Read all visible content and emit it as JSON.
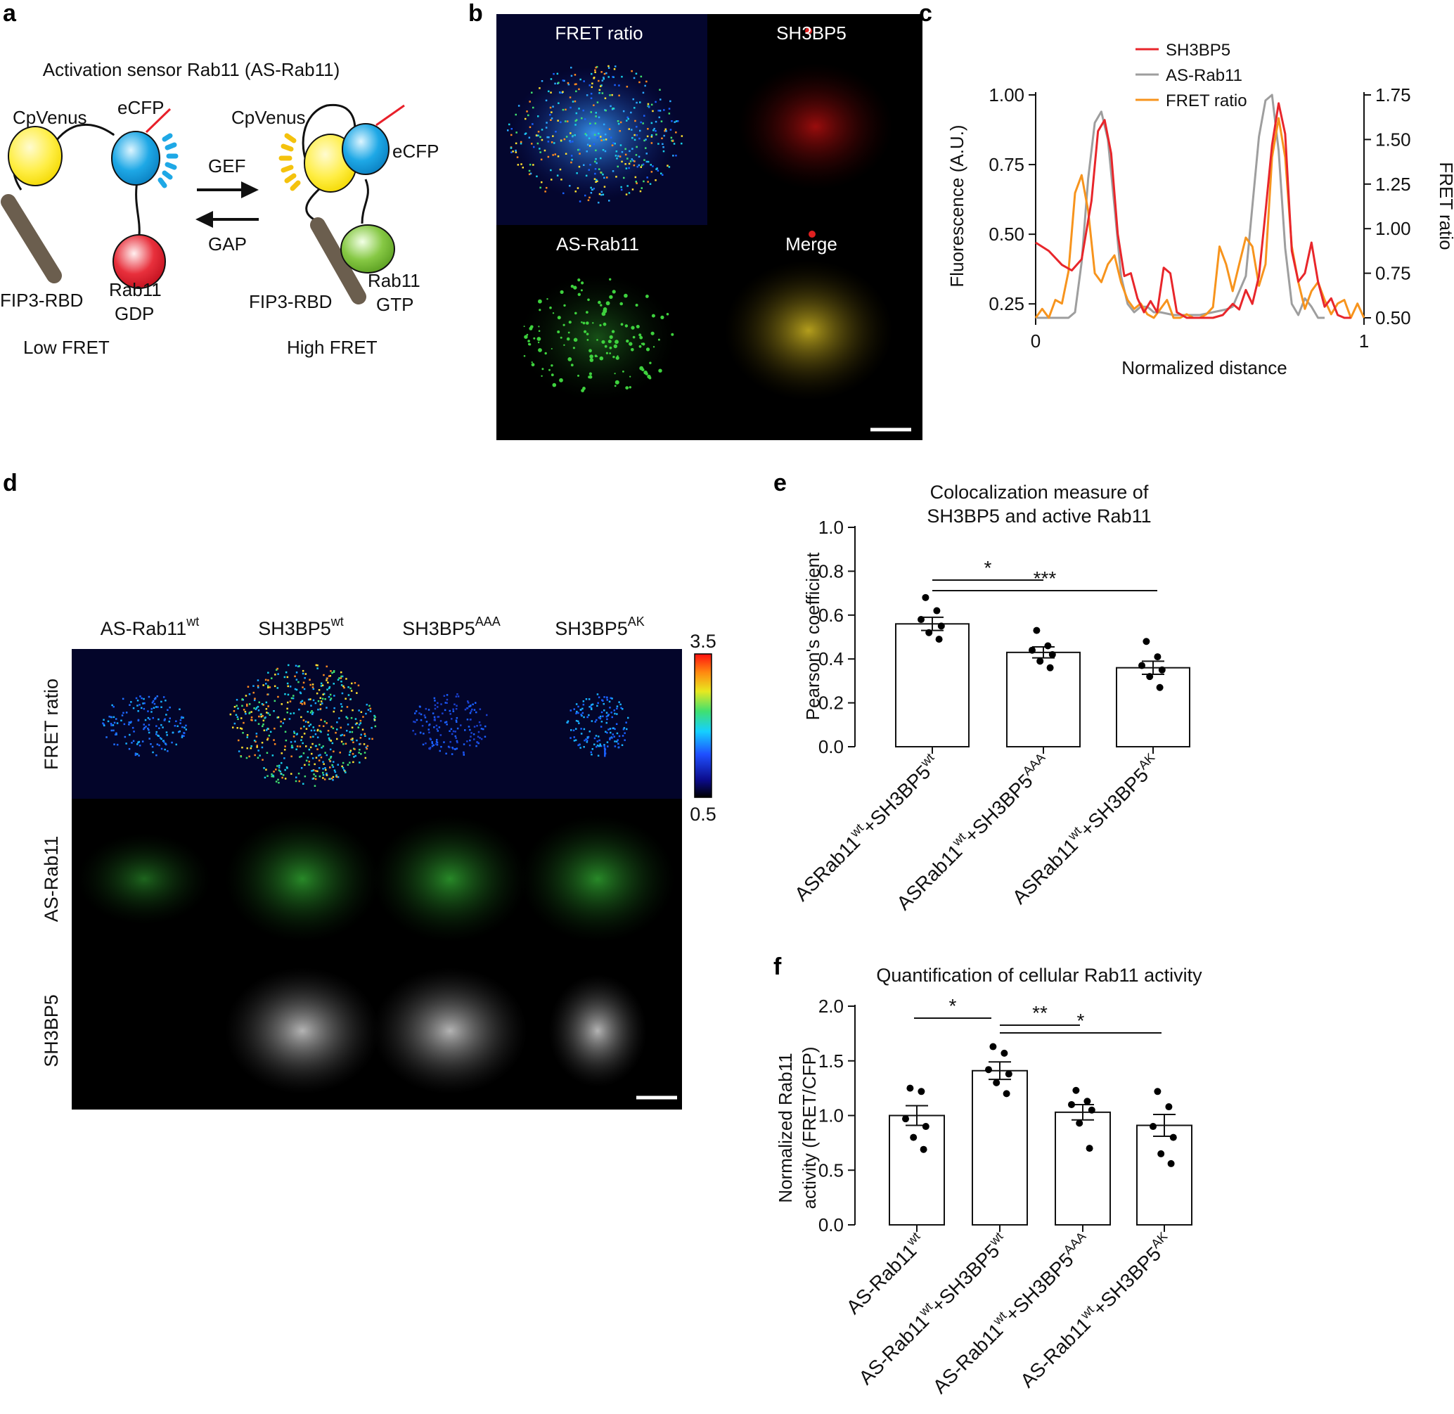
{
  "panel_labels": {
    "a": "a",
    "b": "b",
    "c": "c",
    "d": "d",
    "e": "e",
    "f": "f"
  },
  "panel_a": {
    "title": "Activation sensor Rab11 (AS-Rab11)",
    "left": {
      "cpvenus": "CpVenus",
      "ecfp": "eCFP",
      "fip3": "FIP3-RBD",
      "rab11": "Rab11",
      "gdp": "GDP",
      "state": "Low FRET"
    },
    "right": {
      "cpvenus": "CpVenus",
      "ecfp": "eCFP",
      "fip3": "FIP3-RBD",
      "rab11": "Rab11",
      "gtp": "GTP",
      "state": "High FRET"
    },
    "gef": "GEF",
    "gap": "GAP",
    "colors": {
      "venus": "#ffee44",
      "ecfp": "#1ea8e6",
      "rab_gdp": "#e8303c",
      "rab_gtp": "#86c844",
      "rod": "#6b5e4e",
      "linker_red": "#e8202a"
    }
  },
  "panel_b": {
    "labels": {
      "fret": "FRET ratio",
      "sh3bp5": "SH3BP5",
      "asrab11": "AS-Rab11",
      "merge": "Merge"
    }
  },
  "panel_c": {
    "legend": [
      "SH3BP5",
      "AS-Rab11",
      "FRET ratio"
    ],
    "ylabel_left": "Fluorescence (A.U.)",
    "ylabel_right": "FRET ratio",
    "xlabel": "Normalized distance",
    "left_ticks": [
      "1.00",
      "0.75",
      "0.50",
      "0.25"
    ],
    "right_ticks": [
      "1.75",
      "1.50",
      "1.25",
      "1.00",
      "0.75",
      "0.50"
    ],
    "x_ticks": [
      "0",
      "1"
    ]
  },
  "panel_d": {
    "columns": [
      "AS-Rab11",
      "SH3BP5",
      "SH3BP5",
      "SH3BP5"
    ],
    "column_sup": [
      "wt",
      "wt",
      "AAA",
      "AK"
    ],
    "rows": [
      "FRET ratio",
      "AS-Rab11",
      "SH3BP5"
    ],
    "scale_max": "3.5",
    "scale_min": "0.5"
  },
  "panel_e": {
    "title1": "Colocalization measure of",
    "title2": "SH3BP5 and active Rab11",
    "sig": [
      "*",
      "***"
    ],
    "y_ticks": [
      "0.0",
      "0.2",
      "0.4",
      "0.6",
      "0.8",
      "1.0"
    ]
  },
  "panel_f": {
    "title": "Quantification of cellular Rab11 activity",
    "sig": [
      "*",
      "**",
      "*"
    ],
    "y_ticks": [
      "0.0",
      "0.5",
      "1.0",
      "1.5",
      "2.0"
    ]
  },
  "chart_data": [
    {
      "type": "line",
      "title": "",
      "xlabel": "Normalized distance",
      "ylabel": "Fluorescence (A.U.)",
      "ylabel_right": "FRET ratio",
      "xlim": [
        0,
        1
      ],
      "ylim": [
        0.2,
        1.0
      ],
      "ylim_right": [
        0.5,
        1.75
      ],
      "legend": "top-left",
      "series": [
        {
          "name": "SH3BP5",
          "axis": "left",
          "color": "#e8262b",
          "x": [
            0,
            0.04,
            0.08,
            0.11,
            0.14,
            0.17,
            0.19,
            0.21,
            0.23,
            0.25,
            0.27,
            0.29,
            0.31,
            0.33,
            0.35,
            0.37,
            0.39,
            0.41,
            0.43,
            0.46,
            0.5,
            0.54,
            0.57,
            0.6,
            0.62,
            0.64,
            0.66,
            0.68,
            0.7,
            0.72,
            0.74,
            0.76,
            0.78,
            0.8,
            0.82,
            0.84,
            0.86,
            0.88,
            0.9,
            0.92,
            0.94,
            0.96
          ],
          "y": [
            0.47,
            0.44,
            0.39,
            0.37,
            0.41,
            0.62,
            0.87,
            0.91,
            0.79,
            0.5,
            0.35,
            0.36,
            0.27,
            0.22,
            0.26,
            0.22,
            0.38,
            0.36,
            0.22,
            0.2,
            0.2,
            0.2,
            0.21,
            0.25,
            0.23,
            0.3,
            0.25,
            0.35,
            0.58,
            0.82,
            0.97,
            0.86,
            0.44,
            0.33,
            0.36,
            0.47,
            0.33,
            0.24,
            0.27,
            0.21,
            0.2,
            0.2
          ]
        },
        {
          "name": "AS-Rab11",
          "axis": "left",
          "color": "#9e9e9e",
          "x": [
            0,
            0.1,
            0.12,
            0.14,
            0.16,
            0.18,
            0.2,
            0.22,
            0.24,
            0.26,
            0.28,
            0.3,
            0.32,
            0.34,
            0.36,
            0.38,
            0.42,
            0.5,
            0.58,
            0.6,
            0.64,
            0.66,
            0.68,
            0.7,
            0.72,
            0.74,
            0.76,
            0.78,
            0.8,
            0.82,
            0.84,
            0.86,
            0.88
          ],
          "y": [
            0.2,
            0.2,
            0.22,
            0.4,
            0.7,
            0.9,
            0.94,
            0.84,
            0.6,
            0.35,
            0.25,
            0.22,
            0.24,
            0.24,
            0.22,
            0.22,
            0.21,
            0.21,
            0.23,
            0.24,
            0.35,
            0.6,
            0.85,
            0.98,
            1.0,
            0.8,
            0.45,
            0.25,
            0.21,
            0.27,
            0.24,
            0.2,
            0.2
          ]
        },
        {
          "name": "FRET ratio",
          "axis": "right",
          "color": "#f7941d",
          "x": [
            0,
            0.02,
            0.04,
            0.06,
            0.08,
            0.1,
            0.12,
            0.14,
            0.16,
            0.18,
            0.2,
            0.22,
            0.24,
            0.26,
            0.28,
            0.3,
            0.32,
            0.34,
            0.36,
            0.38,
            0.4,
            0.42,
            0.44,
            0.46,
            0.48,
            0.5,
            0.52,
            0.54,
            0.56,
            0.58,
            0.6,
            0.62,
            0.64,
            0.66,
            0.68,
            0.7,
            0.72,
            0.74,
            0.76,
            0.78,
            0.8,
            0.82,
            0.84,
            0.86,
            0.88,
            0.9,
            0.92,
            0.94,
            0.96,
            0.98,
            1.0
          ],
          "y": [
            0.5,
            0.55,
            0.5,
            0.6,
            0.58,
            0.76,
            1.2,
            1.3,
            1.1,
            0.75,
            0.7,
            0.8,
            0.85,
            0.7,
            0.6,
            0.55,
            0.58,
            0.52,
            0.5,
            0.55,
            0.6,
            0.5,
            0.5,
            0.52,
            0.5,
            0.5,
            0.52,
            0.56,
            0.9,
            0.8,
            0.65,
            0.8,
            0.95,
            0.9,
            0.68,
            0.8,
            1.4,
            1.62,
            1.4,
            0.9,
            0.7,
            0.55,
            0.65,
            0.7,
            0.6,
            0.52,
            0.58,
            0.6,
            0.5,
            0.58,
            0.5
          ]
        }
      ]
    },
    {
      "type": "bar",
      "title": "Colocalization measure of SH3BP5 and active Rab11",
      "xlabel": "",
      "ylabel": "Pearson's coefficient",
      "ylim": [
        0,
        1.0
      ],
      "categories": [
        "ASRab11wt+SH3BP5wt",
        "ASRab11wt+SH3BP5AAA",
        "ASRab11wt+SH3BP5AK"
      ],
      "values": [
        0.56,
        0.43,
        0.36
      ],
      "errors": [
        0.03,
        0.025,
        0.03
      ],
      "points": [
        [
          0.68,
          0.62,
          0.58,
          0.55,
          0.52,
          0.49
        ],
        [
          0.53,
          0.46,
          0.44,
          0.42,
          0.39,
          0.36
        ],
        [
          0.48,
          0.41,
          0.37,
          0.35,
          0.32,
          0.27
        ]
      ],
      "significance": [
        {
          "from": 0,
          "to": 1,
          "label": "*"
        },
        {
          "from": 0,
          "to": 2,
          "label": "***"
        }
      ]
    },
    {
      "type": "bar",
      "title": "Quantification of cellular Rab11 activity",
      "xlabel": "",
      "ylabel": "Normalized Rab11 activity (FRET/CFP)",
      "ylim": [
        0,
        2.0
      ],
      "categories": [
        "AS-Rab11wt",
        "AS-Rab11wt+SH3BP5wt",
        "AS-Rab11wt+SH3BP5AAA",
        "AS-Rab11wt+SH3BP5AK"
      ],
      "values": [
        1.0,
        1.41,
        1.03,
        0.91
      ],
      "errors": [
        0.09,
        0.08,
        0.07,
        0.1
      ],
      "points": [
        [
          1.25,
          1.22,
          0.97,
          0.9,
          0.8,
          0.69
        ],
        [
          1.63,
          1.57,
          1.42,
          1.38,
          1.3,
          1.2
        ],
        [
          1.23,
          1.13,
          1.1,
          1.05,
          0.93,
          0.7
        ],
        [
          1.22,
          1.08,
          0.9,
          0.8,
          0.65,
          0.56
        ]
      ],
      "significance": [
        {
          "from": 0,
          "to": 1,
          "label": "*"
        },
        {
          "from": 1,
          "to": 2,
          "label": "**"
        },
        {
          "from": 1,
          "to": 3,
          "label": "*"
        }
      ]
    }
  ]
}
